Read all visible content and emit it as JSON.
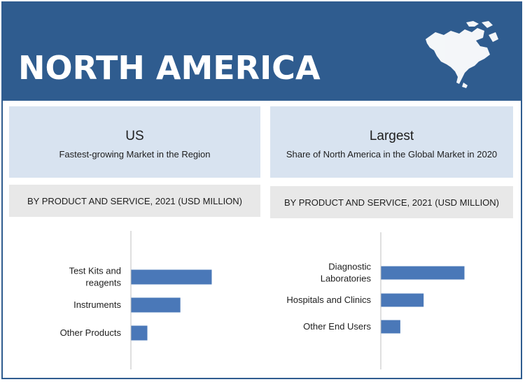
{
  "header": {
    "title": "NORTH AMERICA"
  },
  "left_panel": {
    "headline": "US",
    "subline": "Fastest-growing Market in the Region",
    "chart_caption": "BY PRODUCT AND SERVICE, 2021 (USD MILLION)"
  },
  "right_panel": {
    "headline": "Largest",
    "subline": "Share of North America in the Global Market in 2020",
    "chart_caption": "BY PRODUCT AND SERVICE, 2021 (USD MILLION)"
  },
  "colors": {
    "header_bg": "#2f5c8f",
    "bar": "#4a78b8",
    "info_box": "#d8e3f0",
    "caption_box": "#e8e8e8"
  },
  "chart_data": [
    {
      "type": "bar",
      "orientation": "horizontal",
      "categories": [
        [
          "Test Kits and",
          "reagents"
        ],
        [
          "Instruments"
        ],
        [
          "Other Products"
        ]
      ],
      "values": [
        100,
        61,
        20
      ],
      "xlim": [
        0,
        100
      ],
      "grid": false
    },
    {
      "type": "bar",
      "orientation": "horizontal",
      "categories": [
        [
          "Diagnostic",
          "Laboratories"
        ],
        [
          "Hospitals and Clinics"
        ],
        [
          "Other End Users"
        ]
      ],
      "values": [
        100,
        51,
        23
      ],
      "xlim": [
        0,
        100
      ],
      "grid": false
    }
  ]
}
